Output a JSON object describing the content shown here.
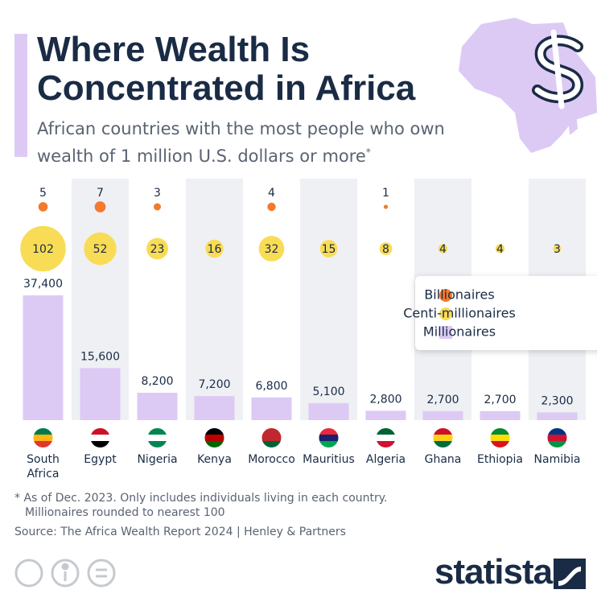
{
  "chart_data": {
    "type": "bubble-bar",
    "title": "Where Wealth Is Concentrated in Africa",
    "subtitle": "African countries with the most people who own wealth of 1 million U.S. dollars or more",
    "subtitle_note": "*",
    "categories": [
      "South Africa",
      "Egypt",
      "Nigeria",
      "Kenya",
      "Morocco",
      "Mauritius",
      "Algeria",
      "Ghana",
      "Ethiopia",
      "Namibia"
    ],
    "series": [
      {
        "name": "Billionaires",
        "color": "#f47a2e",
        "values": [
          5,
          7,
          3,
          null,
          4,
          null,
          1,
          null,
          null,
          null
        ]
      },
      {
        "name": "Centi-millionaires",
        "color": "#f9dc55",
        "values": [
          102,
          52,
          23,
          16,
          32,
          15,
          8,
          4,
          4,
          3
        ]
      },
      {
        "name": "Millionaires",
        "color": "#dccaf5",
        "values": [
          37400,
          15600,
          8200,
          7200,
          6800,
          5100,
          2800,
          2700,
          2700,
          2300
        ],
        "value_labels": [
          "37,400",
          "15,600",
          "8,200",
          "7,200",
          "6,800",
          "5,100",
          "2,800",
          "2,700",
          "2,700",
          "2,300"
        ]
      }
    ],
    "footnote": [
      "* As of Dec. 2023. Only includes individuals living in each country.",
      "Millionaires rounded to nearest 100"
    ],
    "source": "Source: The Africa Wealth Report 2024 | Henley & Partners",
    "logo": "statista"
  }
}
